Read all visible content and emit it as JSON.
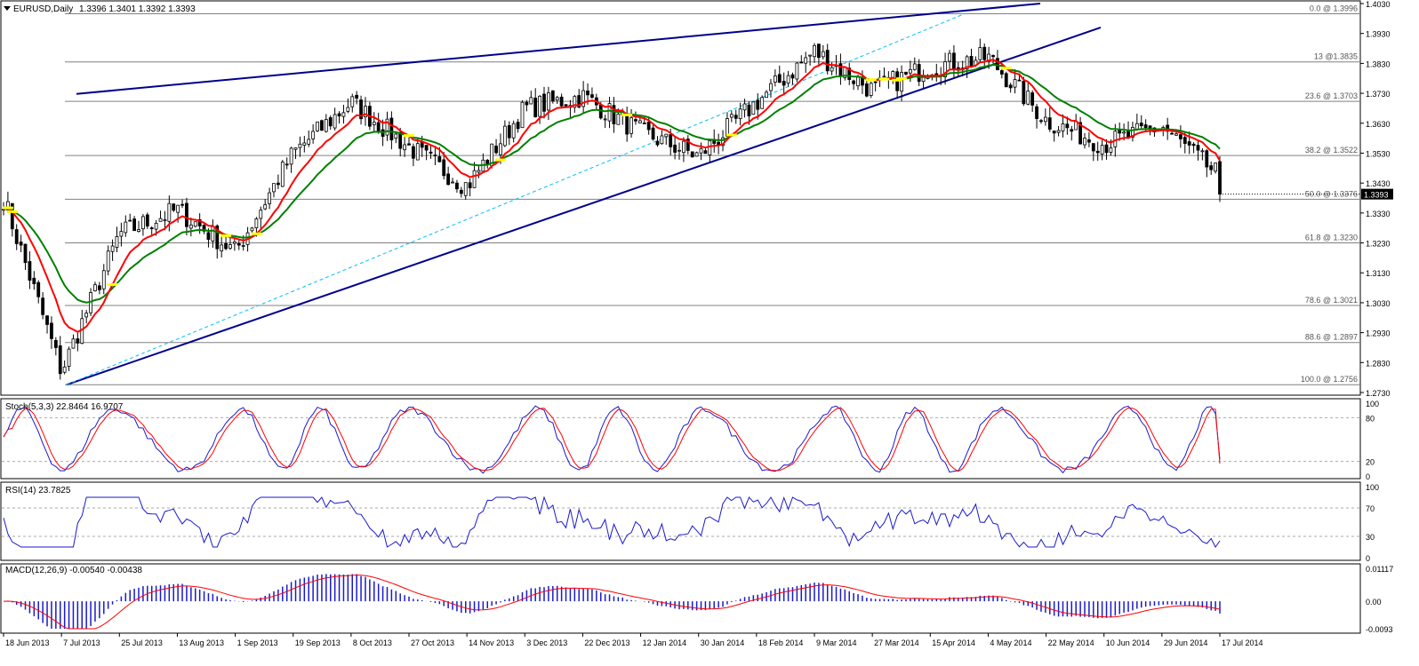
{
  "header": {
    "symbol": "EURUSD,Daily",
    "ohlc": "1.3396 1.3401 1.3392 1.3393",
    "icon": "triangle-down-icon"
  },
  "colors": {
    "candle": "#000000",
    "ema_fast": "#ff0000",
    "ema_slow": "#008000",
    "trendline": "#00008b",
    "dashed_line": "#00bfff",
    "fib": "#808080",
    "stoch_main": "#1a1acc",
    "stoch_signal": "#ff0000",
    "rsi": "#1a1acc",
    "macd_hist": "#1a1acc",
    "macd_signal": "#ff0000",
    "cross_marker": "#ffff00",
    "price_tag_bg": "#000000"
  },
  "price_panel": {
    "ylim": [
      1.273,
      1.403
    ],
    "y_ticks": [
      "1.4030",
      "1.3930",
      "1.3830",
      "1.3730",
      "1.3630",
      "1.3530",
      "1.3430",
      "1.3330",
      "1.3230",
      "1.3130",
      "1.3030",
      "1.2930",
      "1.2830",
      "1.2730"
    ],
    "current_price": "1.3393",
    "fib_levels": [
      {
        "label": "0.0 @ 1.3996",
        "price": 1.3996
      },
      {
        "label": "13 @1.3835",
        "price": 1.3835
      },
      {
        "label": "23.6 @ 1.3703",
        "price": 1.3703
      },
      {
        "label": "38.2 @ 1.3522",
        "price": 1.3522
      },
      {
        "label": "50.0 @ 1.3376",
        "price": 1.3376
      },
      {
        "label": "61.8 @ 1.3230",
        "price": 1.323
      },
      {
        "label": "78.6 @ 1.3021",
        "price": 1.3021
      },
      {
        "label": "88.6 @ 1.2897",
        "price": 1.2897
      },
      {
        "label": "100.0 @ 1.2756",
        "price": 1.2756
      }
    ]
  },
  "stoch_panel": {
    "title": "Stoch(5,3,3) 22.8464 16.9707",
    "ylim": [
      0,
      100
    ],
    "y_ticks": [
      "100",
      "80",
      "20",
      "0"
    ],
    "levels": [
      80,
      20
    ]
  },
  "rsi_panel": {
    "title": "RSI(14) 23.7825",
    "ylim": [
      0,
      100
    ],
    "y_ticks": [
      "100",
      "70",
      "30",
      "0"
    ],
    "levels": [
      70,
      30
    ]
  },
  "macd_panel": {
    "title": "MACD(12,26,9) -0.00540 -0.00438",
    "ylim": [
      -0.0093,
      0.01117
    ],
    "y_ticks": [
      "0.01117",
      "0.00",
      "-0.0093"
    ]
  },
  "x_axis": {
    "labels": [
      "18 Jun 2013",
      "7 Jul 2013",
      "25 Jul 2013",
      "13 Aug 2013",
      "1 Sep 2013",
      "19 Sep 2013",
      "8 Oct 2013",
      "27 Oct 2013",
      "14 Nov 2013",
      "3 Dec 2013",
      "22 Dec 2013",
      "12 Jan 2014",
      "30 Jan 2014",
      "18 Feb 2014",
      "9 Mar 2014",
      "27 Mar 2014",
      "15 Apr 2014",
      "4 May 2014",
      "22 May 2014",
      "10 Jun 2014",
      "29 Jun 2014",
      "17 Jul 2014"
    ]
  },
  "chart_data": {
    "type": "line",
    "title": "EURUSD,Daily",
    "categories": [
      "18 Jun 2013",
      "7 Jul 2013",
      "25 Jul 2013",
      "13 Aug 2013",
      "1 Sep 2013",
      "19 Sep 2013",
      "8 Oct 2013",
      "27 Oct 2013",
      "14 Nov 2013",
      "3 Dec 2013",
      "22 Dec 2013",
      "12 Jan 2014",
      "30 Jan 2014",
      "18 Feb 2014",
      "9 Mar 2014",
      "27 Mar 2014",
      "15 Apr 2014",
      "4 May 2014",
      "22 May 2014",
      "10 Jun 2014",
      "29 Jun 2014",
      "17 Jul 2014"
    ],
    "series": [
      {
        "values": [
          1.338,
          1.28,
          1.326,
          1.334,
          1.32,
          1.353,
          1.37,
          1.355,
          1.342,
          1.368,
          1.372,
          1.36,
          1.352,
          1.37,
          1.387,
          1.374,
          1.382,
          1.385,
          1.364,
          1.356,
          1.362,
          1.345
        ]
      }
    ],
    "ylim": [
      1.273,
      1.403
    ]
  }
}
